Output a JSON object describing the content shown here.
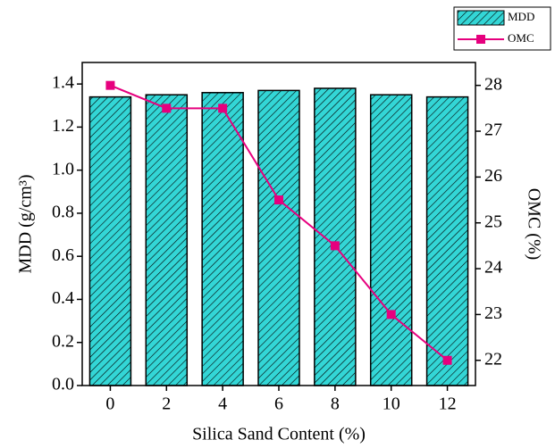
{
  "chart_data": {
    "type": "bar",
    "x_label": "Silica Sand Content (%)",
    "y_label": "MDD (g/cm³)",
    "y2_label": "OMC (%)",
    "categories": [
      "0",
      "2",
      "4",
      "6",
      "8",
      "10",
      "12"
    ],
    "series": [
      {
        "name": "MDD",
        "type": "bar",
        "color": "#33d6d6",
        "values": [
          1.34,
          1.35,
          1.36,
          1.37,
          1.38,
          1.35,
          1.34
        ]
      },
      {
        "name": "OMC",
        "type": "line",
        "color": "#e6007e",
        "axis": "y2",
        "values": [
          28,
          27.5,
          27.5,
          25.5,
          24.5,
          23,
          22
        ]
      }
    ],
    "ylim": [
      0,
      1.5
    ],
    "yticks": [
      {
        "value": 0,
        "label": "0.0"
      },
      0.2,
      0.4,
      0.6,
      0.8,
      {
        "value": 1,
        "label": "1.0"
      },
      1.2,
      1.4
    ],
    "y2lim": [
      21.45,
      28.5
    ],
    "y2ticks": [
      22,
      23,
      24,
      25,
      26,
      27,
      28
    ],
    "legend": "top-right"
  }
}
